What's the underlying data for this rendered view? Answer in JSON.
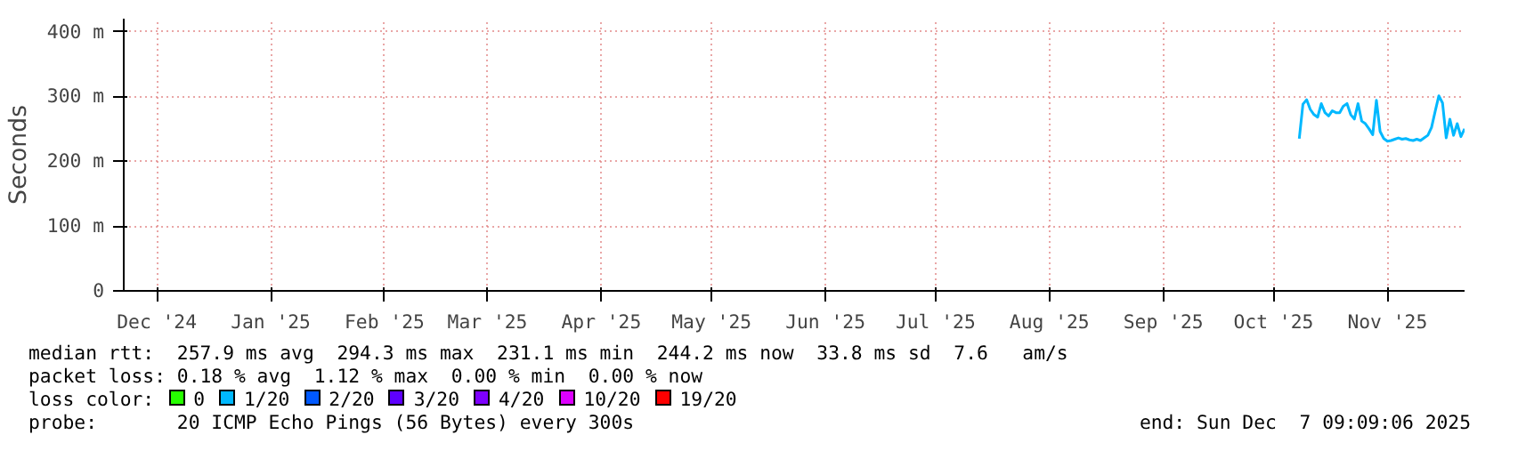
{
  "chart_data": {
    "type": "line",
    "ylabel": "Seconds",
    "legend_title": "loss color:",
    "x": [
      "2025-10-23",
      "2025-10-24",
      "2025-10-25",
      "2025-10-26",
      "2025-10-27",
      "2025-10-28",
      "2025-10-29",
      "2025-10-30",
      "2025-10-31",
      "2025-11-01",
      "2025-11-02",
      "2025-11-03",
      "2025-11-04",
      "2025-11-05",
      "2025-11-06",
      "2025-11-07",
      "2025-11-08",
      "2025-11-09",
      "2025-11-10",
      "2025-11-11",
      "2025-11-12",
      "2025-11-13",
      "2025-11-14",
      "2025-11-15",
      "2025-11-16",
      "2025-11-17",
      "2025-11-18",
      "2025-11-19",
      "2025-11-20",
      "2025-11-21",
      "2025-11-22",
      "2025-11-23",
      "2025-11-24",
      "2025-11-25",
      "2025-11-26",
      "2025-11-27",
      "2025-11-28",
      "2025-11-29",
      "2025-11-30",
      "2025-12-01",
      "2025-12-02",
      "2025-12-03",
      "2025-12-04",
      "2025-12-05",
      "2025-12-06",
      "2025-12-07"
    ],
    "series": [
      {
        "color": "#00b8ff",
        "values": [
          235,
          288,
          295,
          280,
          272,
          268,
          289,
          275,
          270,
          278,
          275,
          275,
          285,
          289,
          272,
          265,
          289,
          262,
          258,
          250,
          241,
          294,
          246,
          235,
          231,
          232,
          234,
          236,
          234,
          235,
          233,
          232,
          234,
          232,
          236,
          240,
          252,
          277,
          301,
          290,
          236,
          265,
          240,
          258,
          238,
          250
        ]
      },
      {
        "name": "0",
        "color": "#26ff00",
        "values": [
          null,
          null,
          null,
          null,
          null,
          null,
          null,
          null,
          null,
          null,
          null,
          null,
          null,
          null,
          null,
          null,
          null,
          null,
          null,
          null,
          null,
          null,
          null,
          null,
          null,
          null,
          null,
          null,
          null,
          null,
          null,
          null,
          null,
          null,
          null,
          null,
          null,
          null,
          null,
          null,
          null,
          null,
          null,
          null,
          null,
          null
        ]
      },
      {
        "name": "1/20",
        "color": "#00b8ff",
        "values": [
          null,
          null,
          null,
          null,
          null,
          null,
          null,
          null,
          null,
          null,
          null,
          null,
          null,
          null,
          null,
          null,
          null,
          null,
          null,
          null,
          null,
          null,
          null,
          null,
          null,
          null,
          null,
          null,
          null,
          null,
          null,
          null,
          null,
          null,
          null,
          null,
          null,
          null,
          null,
          null,
          null,
          null,
          null,
          null,
          null,
          null
        ]
      },
      {
        "name": "2/20",
        "color": "#0059ff",
        "values": [
          null,
          null,
          null,
          null,
          null,
          null,
          null,
          null,
          null,
          null,
          null,
          null,
          null,
          null,
          null,
          null,
          null,
          null,
          null,
          null,
          null,
          null,
          null,
          null,
          null,
          null,
          null,
          null,
          null,
          null,
          null,
          null,
          null,
          null,
          null,
          null,
          null,
          null,
          null,
          null,
          null,
          null,
          null,
          null,
          null,
          null
        ]
      },
      {
        "name": "3/20",
        "color": "#5e00ff",
        "values": [
          null,
          null,
          null,
          null,
          null,
          null,
          null,
          null,
          null,
          null,
          null,
          null,
          null,
          null,
          null,
          null,
          null,
          null,
          null,
          null,
          null,
          null,
          null,
          null,
          null,
          null,
          null,
          null,
          null,
          null,
          null,
          null,
          null,
          null,
          null,
          null,
          null,
          null,
          null,
          null,
          null,
          null,
          null,
          null,
          null,
          null
        ]
      },
      {
        "name": "4/20",
        "color": "#7e00ff",
        "values": [
          null,
          null,
          null,
          null,
          null,
          null,
          null,
          null,
          null,
          null,
          null,
          null,
          null,
          null,
          null,
          null,
          null,
          null,
          null,
          null,
          null,
          null,
          null,
          null,
          null,
          null,
          null,
          null,
          null,
          null,
          null,
          null,
          null,
          null,
          null,
          null,
          null,
          null,
          null,
          null,
          null,
          null,
          null,
          null,
          null,
          null
        ]
      },
      {
        "name": "10/20",
        "color": "#dd00ff",
        "values": [
          null,
          null,
          null,
          null,
          null,
          null,
          null,
          null,
          null,
          null,
          null,
          null,
          null,
          null,
          null,
          null,
          null,
          null,
          null,
          null,
          null,
          null,
          null,
          null,
          null,
          null,
          null,
          null,
          null,
          null,
          null,
          null,
          null,
          null,
          null,
          null,
          null,
          null,
          null,
          null,
          null,
          null,
          null,
          null,
          null,
          null
        ]
      },
      {
        "name": "19/20",
        "color": "#ff0000",
        "values": [
          null,
          null,
          null,
          null,
          null,
          null,
          null,
          null,
          null,
          null,
          null,
          null,
          null,
          null,
          null,
          null,
          null,
          null,
          null,
          null,
          null,
          null,
          null,
          null,
          null,
          null,
          null,
          null,
          null,
          null,
          null,
          null,
          null,
          null,
          null,
          null,
          null,
          null,
          null,
          null,
          null,
          null,
          null,
          null,
          null,
          null
        ]
      }
    ],
    "xlim": [
      "2024-12-07",
      "2025-12-07"
    ],
    "xticks": [
      {
        "value": "2024-12-16",
        "label": "Dec '24"
      },
      {
        "value": "2025-01-16",
        "label": "Jan '25"
      },
      {
        "value": "2025-02-16",
        "label": "Feb '25"
      },
      {
        "value": "2025-03-16",
        "label": "Mar '25"
      },
      {
        "value": "2025-04-16",
        "label": "Apr '25"
      },
      {
        "value": "2025-05-16",
        "label": "May '25"
      },
      {
        "value": "2025-06-16",
        "label": "Jun '25"
      },
      {
        "value": "2025-07-16",
        "label": "Jul '25"
      },
      {
        "value": "2025-08-16",
        "label": "Aug '25"
      },
      {
        "value": "2025-09-16",
        "label": "Sep '25"
      },
      {
        "value": "2025-10-16",
        "label": "Oct '25"
      },
      {
        "value": "2025-11-16",
        "label": "Nov '25"
      }
    ],
    "ylim": [
      0,
      420
    ],
    "yticks": [
      0,
      {
        "value": 100,
        "label": "100 m"
      },
      {
        "value": 200,
        "label": "200 m"
      },
      {
        "value": 300,
        "label": "300 m"
      },
      {
        "value": 400,
        "label": "400 m"
      }
    ],
    "grid": true,
    "legend": "bottom",
    "marker": "none",
    "line_style": "solid",
    "annotations": [
      "median rtt:  257.9 ms avg  294.3 ms max  231.1 ms min  244.2 ms now  33.8 ms sd  7.6   am/s",
      "packet loss: 0.18 % avg  1.12 % max  0.00 % min  0.00 % now",
      "probe:       20 ICMP Echo Pings (56 Bytes) every 300s",
      "end: Sun Dec  7 09:09:06 2025"
    ]
  }
}
